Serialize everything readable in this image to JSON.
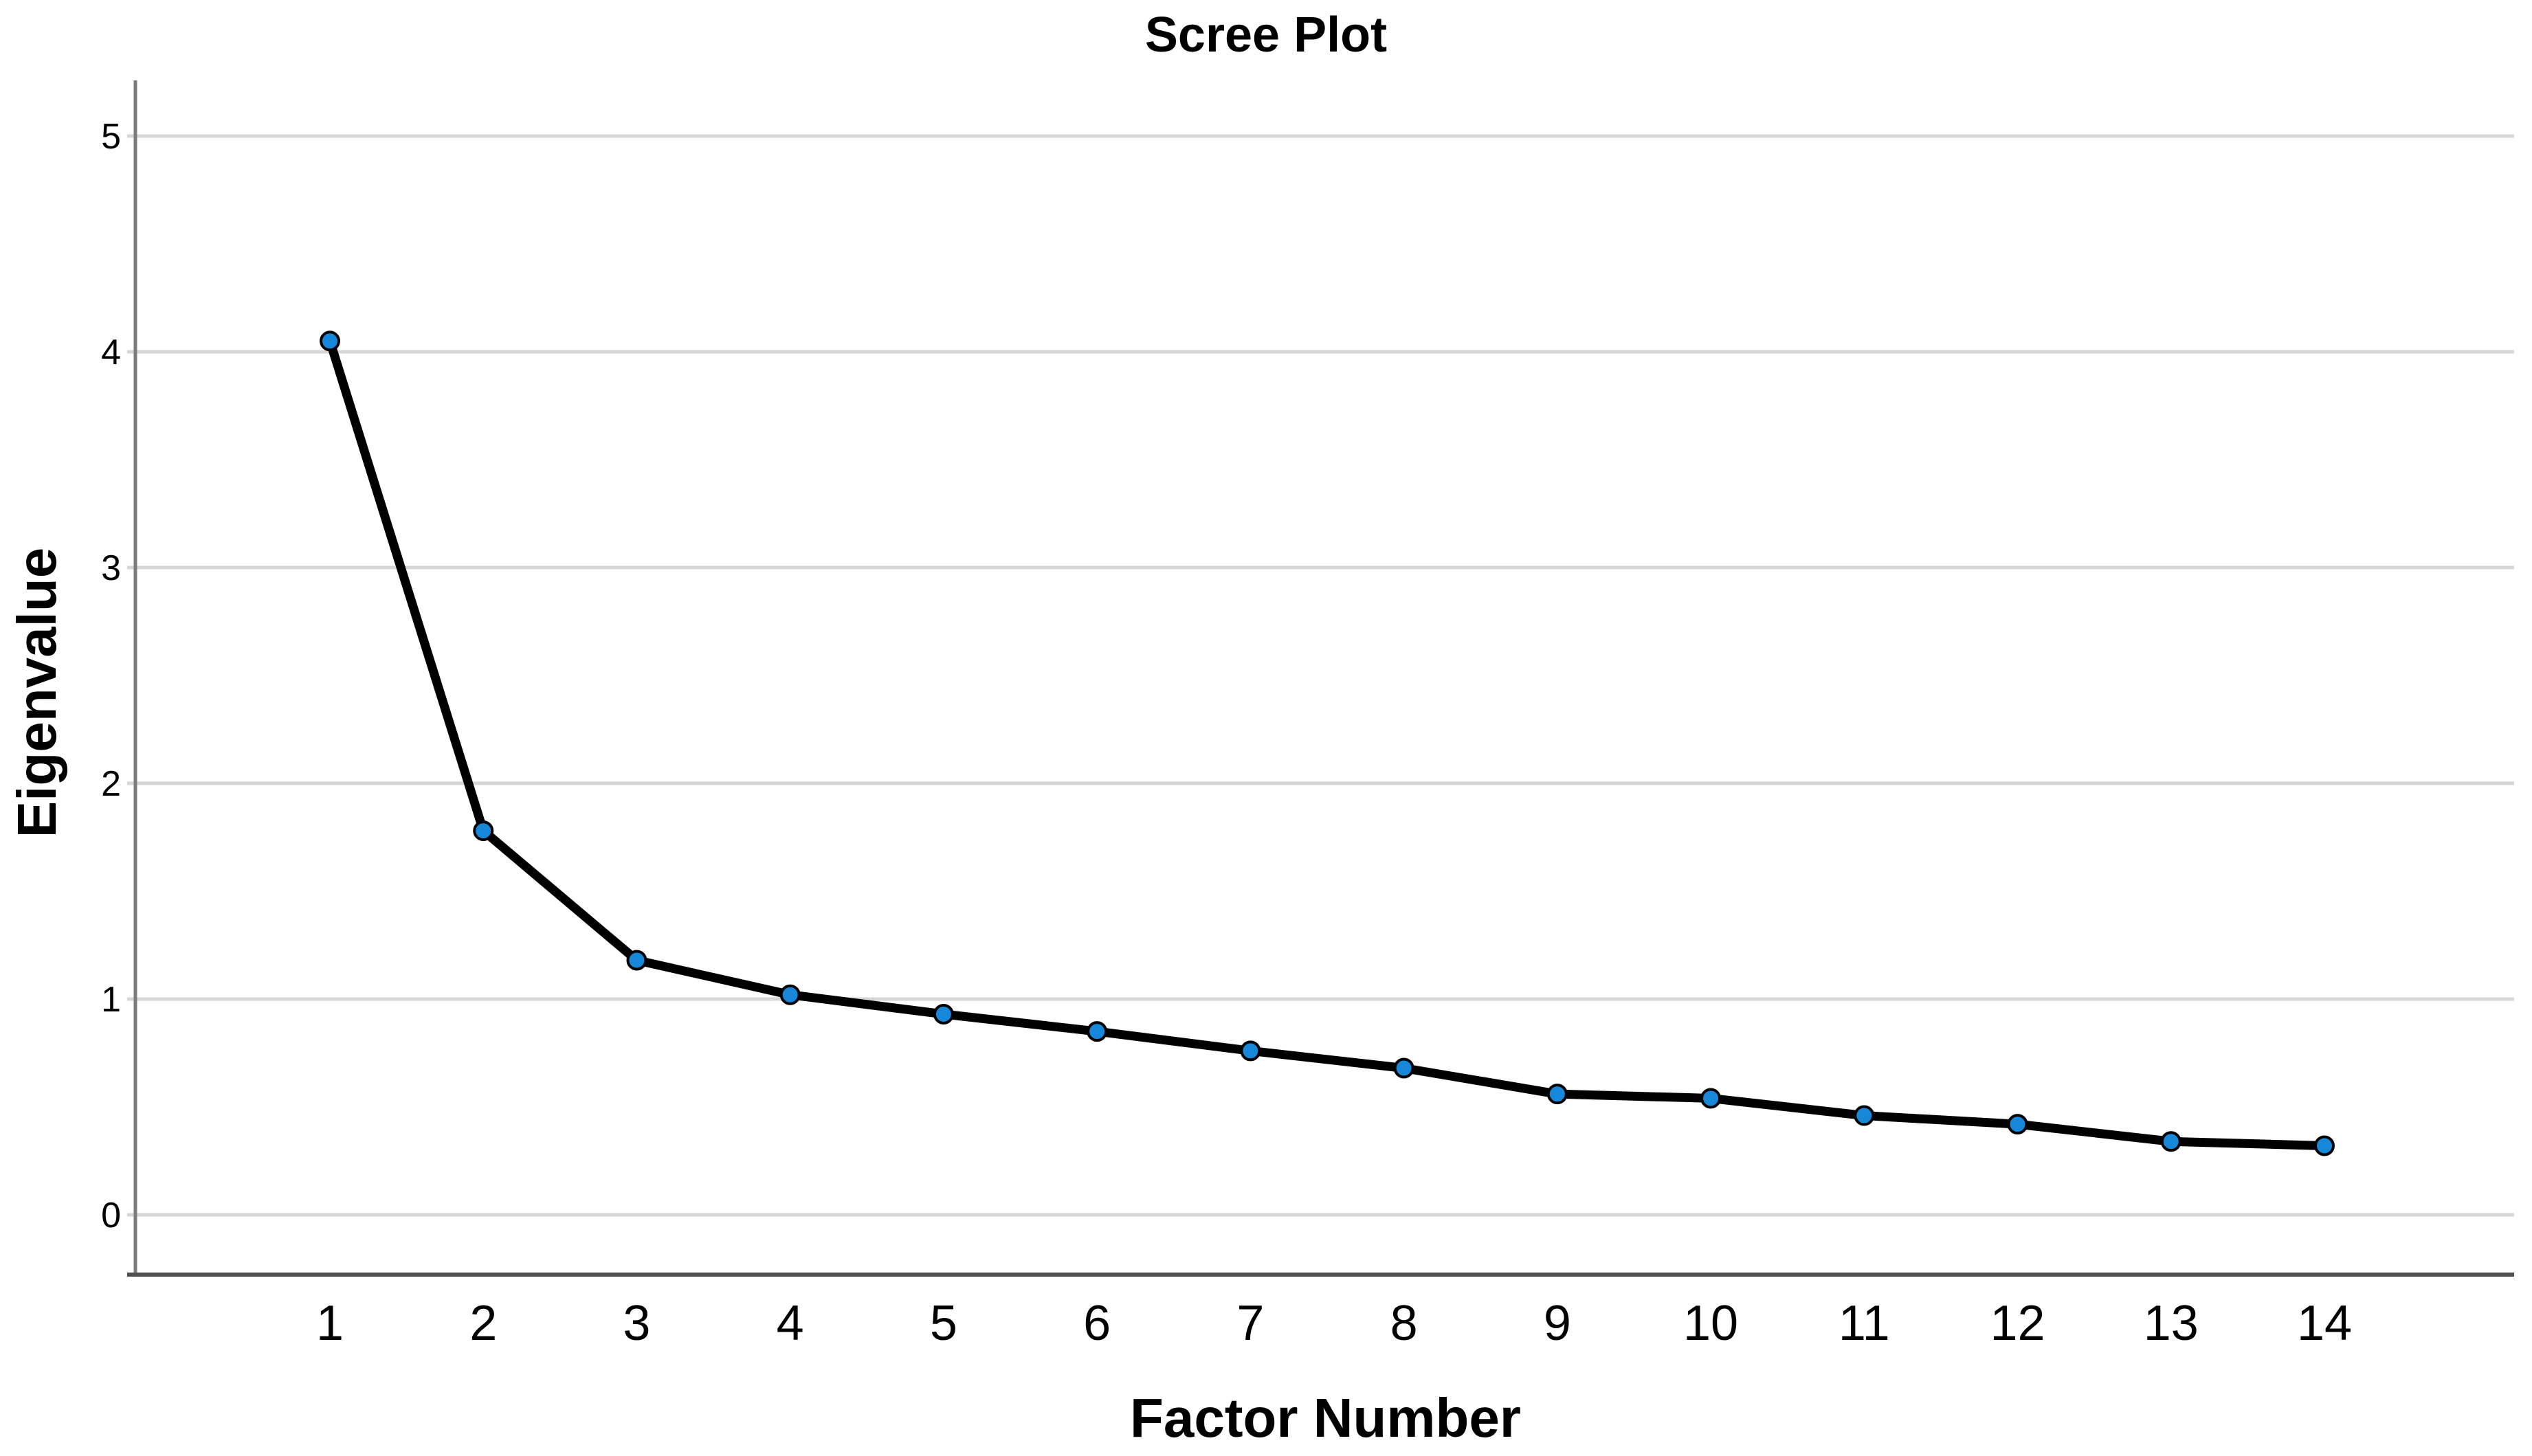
{
  "chart": {
    "title": "Scree Plot",
    "xlabel": "Factor Number",
    "ylabel": "Eigenvalue"
  },
  "chart_data": {
    "type": "line",
    "title": "Scree Plot",
    "xlabel": "Factor Number",
    "ylabel": "Eigenvalue",
    "x": [
      1,
      2,
      3,
      4,
      5,
      6,
      7,
      8,
      9,
      10,
      11,
      12,
      13,
      14
    ],
    "values": [
      4.05,
      1.78,
      1.18,
      1.02,
      0.93,
      0.85,
      0.76,
      0.68,
      0.56,
      0.54,
      0.46,
      0.42,
      0.34,
      0.32
    ],
    "xticks": [
      "1",
      "2",
      "3",
      "4",
      "5",
      "6",
      "7",
      "8",
      "9",
      "10",
      "11",
      "12",
      "13",
      "14"
    ],
    "yticks": [
      "0",
      "1",
      "2",
      "3",
      "4",
      "5"
    ],
    "ylim": [
      0,
      5
    ],
    "grid": "horizontal",
    "legend": "none",
    "marker": "circle",
    "colors": {
      "line": "#000000",
      "marker_fill": "#1788D9",
      "marker_stroke": "#000000",
      "gridline": "#D6D6D6",
      "y_axis_line": "#7C7C7C",
      "x_axis_line": "#4F4F4F",
      "text": "#000000",
      "background": "#FFFFFF"
    }
  }
}
